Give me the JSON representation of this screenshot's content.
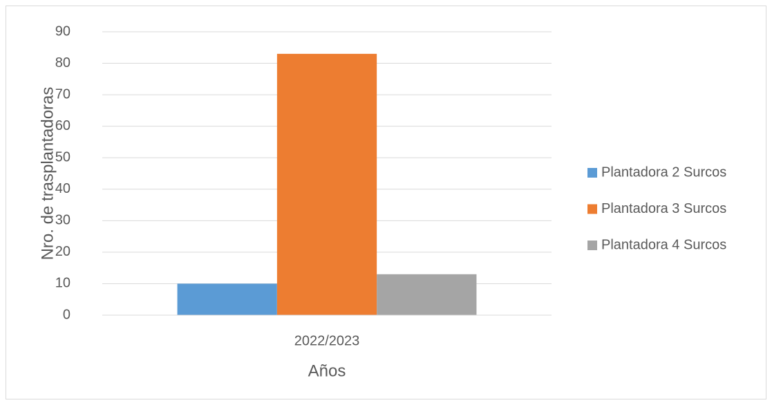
{
  "chart_data": {
    "type": "bar",
    "x_label": "Años",
    "y_label": "Nro. de trasplantadoras",
    "categories": [
      "2022/2023"
    ],
    "series": [
      {
        "name": "Plantadora 2 Surcos",
        "color": "#5b9bd5",
        "values": [
          10
        ]
      },
      {
        "name": "Plantadora 3 Surcos",
        "color": "#ed7d31",
        "values": [
          83
        ]
      },
      {
        "name": "Plantadora 4 Surcos",
        "color": "#a5a5a5",
        "values": [
          13
        ]
      }
    ],
    "ylim": [
      0,
      90
    ],
    "yticks": [
      0,
      10,
      20,
      30,
      40,
      50,
      60,
      70,
      80,
      90
    ],
    "grid": true,
    "legend": "right"
  }
}
